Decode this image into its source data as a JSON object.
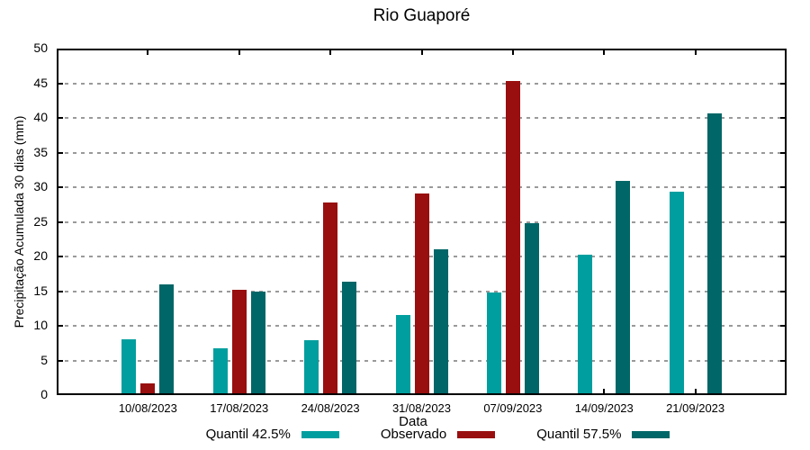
{
  "chart_data": {
    "type": "bar",
    "title": "Rio Guaporé",
    "xlabel": "Data",
    "ylabel": "Precipitação Acumulada 30 dias (mm)",
    "ylim": [
      0,
      50
    ],
    "ytick_step": 5,
    "grid": "dashed-horizontal",
    "legend_position": "bottom-center",
    "background_color": "#ffffff",
    "frame_color": "#000000",
    "gridline_color": "#9a9a9a",
    "categories": [
      "10/08/2023",
      "17/08/2023",
      "24/08/2023",
      "31/08/2023",
      "07/09/2023",
      "14/09/2023",
      "21/09/2023"
    ],
    "series": [
      {
        "name": "Quantil 42.5%",
        "color": "#009e9e",
        "values": [
          8.0,
          6.8,
          7.9,
          11.5,
          14.8,
          20.3,
          29.4
        ]
      },
      {
        "name": "Observado",
        "color": "#990f0f",
        "values": [
          1.7,
          15.2,
          27.8,
          29.1,
          45.3,
          null,
          null
        ]
      },
      {
        "name": "Quantil 57.5%",
        "color": "#006667",
        "values": [
          16.0,
          15.0,
          16.3,
          21.1,
          24.8,
          30.9,
          40.7
        ]
      }
    ]
  }
}
